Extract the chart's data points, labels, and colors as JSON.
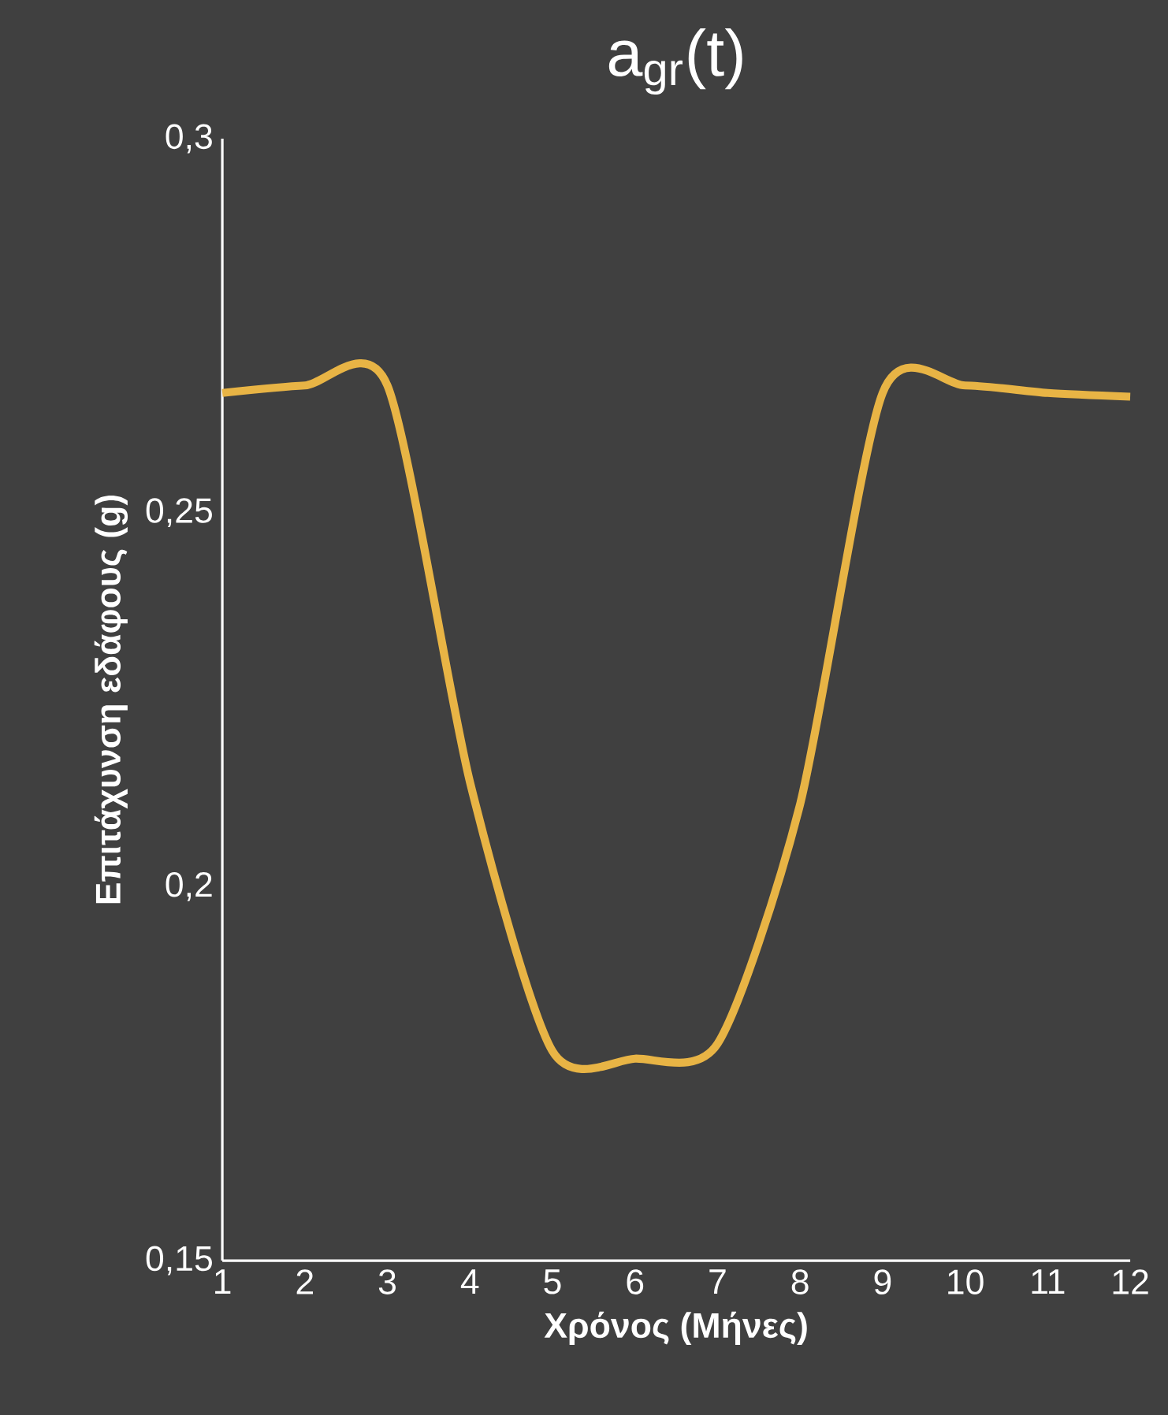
{
  "chart_data": {
    "type": "line",
    "title": "a$_{gr}$(t)",
    "xlabel": "Χρόνος (Μήνες)",
    "ylabel": "Επιτάχυνση εδάφους (g)",
    "x": [
      1,
      2,
      3,
      4,
      5,
      6,
      7,
      8,
      9,
      10,
      11,
      12
    ],
    "series": [
      {
        "color": "#e8b445",
        "values": [
          0.266,
          0.267,
          0.267,
          0.214,
          0.178,
          0.177,
          0.179,
          0.211,
          0.266,
          0.267,
          0.266,
          0.2655
        ]
      }
    ],
    "xlim": [
      1,
      12
    ],
    "ylim": [
      0.15,
      0.3
    ],
    "xticks": [
      1,
      2,
      3,
      4,
      5,
      6,
      7,
      8,
      9,
      10,
      11,
      12
    ],
    "yticks": [
      {
        "value": 0.15,
        "label": "0,15"
      },
      {
        "value": 0.2,
        "label": "0,2"
      },
      {
        "value": 0.25,
        "label": "0,25"
      },
      {
        "value": 0.3,
        "label": "0,3"
      }
    ],
    "grid": false,
    "marker": "none",
    "line_style": "solid"
  }
}
